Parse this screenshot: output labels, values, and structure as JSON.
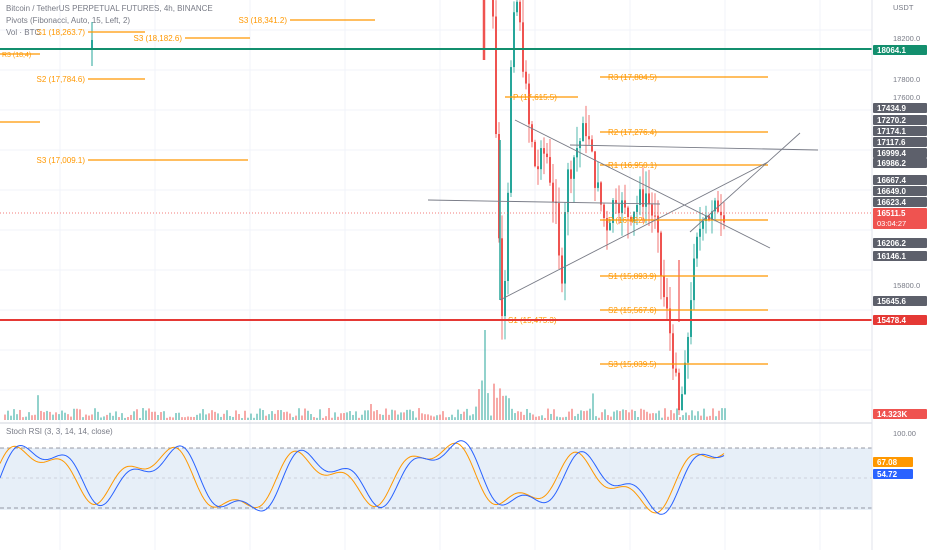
{
  "header": {
    "title": "Bitcoin / TetherUS PERPETUAL FUTURES, 4h, BINANCE",
    "pivots_indicator": "Pivots (Fibonacci, Auto, 15, Left, 2)",
    "volume_indicator": "Vol · BTC",
    "currency": "USDT"
  },
  "stoch_panel": {
    "title": "Stoch RSI (3, 3, 14, 14, close)",
    "k_value": "67.08",
    "d_value": "54.72",
    "level_100": "100.00"
  },
  "colors": {
    "up": "#26a69a",
    "down": "#ef5350",
    "pivot": "#ff9800",
    "trendline": "#787b86",
    "support_line": "#e53935",
    "resistance_line": "#138f6e",
    "stoch_k": "#2962ff",
    "stoch_d": "#ff9800",
    "stoch_band": "#c9dcf0"
  },
  "chart_data": {
    "type": "candlestick",
    "symbol": "BTCUSDT.P",
    "interval": "4h",
    "price_axis_ticks": [
      "18200.0",
      "17800.0",
      "17600.0",
      "17000.0",
      "16400.0",
      "15800.0"
    ],
    "price_labels": [
      {
        "price": "18064.1",
        "kind": "horizontal",
        "color": "#138f6e"
      },
      {
        "price": "17434.9",
        "kind": "gray"
      },
      {
        "price": "17270.2",
        "kind": "gray"
      },
      {
        "price": "17174.1",
        "kind": "gray"
      },
      {
        "price": "17117.6",
        "kind": "gray"
      },
      {
        "price": "16999.4",
        "kind": "gray"
      },
      {
        "price": "16986.2",
        "kind": "gray"
      },
      {
        "price": "16667.4",
        "kind": "gray"
      },
      {
        "price": "16649.0",
        "kind": "gray"
      },
      {
        "price": "16623.4",
        "kind": "gray"
      },
      {
        "price": "16511.5",
        "kind": "last",
        "color": "#ef5350",
        "countdown": "03:04:27"
      },
      {
        "price": "16206.2",
        "kind": "gray"
      },
      {
        "price": "16146.1",
        "kind": "gray"
      },
      {
        "price": "15645.6",
        "kind": "gray"
      },
      {
        "price": "15478.4",
        "kind": "horizontal",
        "color": "#e53935"
      },
      {
        "price": "14.323K",
        "kind": "volume",
        "color": "#ef5350"
      }
    ],
    "pivot_labels": [
      {
        "label": "S3 (18,341.2)"
      },
      {
        "label": "S1 (18,263.7)"
      },
      {
        "label": "S3 (18,182.6)"
      },
      {
        "label": "S2 (17,784.6)"
      },
      {
        "label": "S3 (17,009.1)"
      },
      {
        "label": "R3 (17,804.5)"
      },
      {
        "label": "P (17,615.5)"
      },
      {
        "label": "R2 (17,276.4)"
      },
      {
        "label": "R1 (16,950.1)"
      },
      {
        "label": "P (16,422)"
      },
      {
        "label": "S1 (15,893.9)"
      },
      {
        "label": "S2 (15,567.6)"
      },
      {
        "label": "S3 (15,039.5)"
      },
      {
        "label": "S1 (15,475.3)"
      },
      {
        "label": "R3 (18,4)"
      }
    ]
  }
}
